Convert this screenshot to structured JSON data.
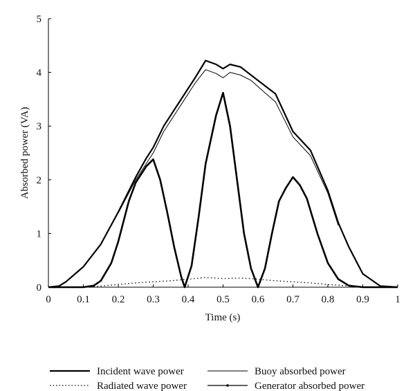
{
  "chart_data": {
    "type": "line",
    "title": "",
    "xlabel": "Time (s)",
    "ylabel": "Absorbed power (VA)",
    "xlim": [
      0,
      1
    ],
    "ylim": [
      0,
      5
    ],
    "xticks": [
      "0",
      "0.1",
      "0.2",
      "0.3",
      "0.4",
      "0.5",
      "0.6",
      "0.7",
      "0.8",
      "0.9",
      "1"
    ],
    "yticks": [
      "0",
      "1",
      "2",
      "3",
      "4",
      "5"
    ],
    "grid": false,
    "legend_position": "bottom",
    "series": [
      {
        "name": "Incident wave power",
        "style": "thick-solid",
        "x": [
          0,
          0.03,
          0.05,
          0.1,
          0.15,
          0.2,
          0.25,
          0.28,
          0.3,
          0.33,
          0.38,
          0.42,
          0.45,
          0.48,
          0.5,
          0.52,
          0.55,
          0.58,
          0.62,
          0.65,
          0.7,
          0.75,
          0.8,
          0.83,
          0.86,
          0.9,
          0.95,
          1.0
        ],
        "y": [
          0,
          0.02,
          0.1,
          0.38,
          0.8,
          1.4,
          2.05,
          2.4,
          2.6,
          3.0,
          3.5,
          3.9,
          4.22,
          4.15,
          4.07,
          4.15,
          4.1,
          3.95,
          3.75,
          3.6,
          2.9,
          2.55,
          1.8,
          1.2,
          0.75,
          0.25,
          0.02,
          0
        ]
      },
      {
        "name": "Buoy absorbed power",
        "style": "thin-solid",
        "x": [
          0.2,
          0.25,
          0.28,
          0.3,
          0.33,
          0.38,
          0.42,
          0.45,
          0.48,
          0.5,
          0.52,
          0.55,
          0.58,
          0.62,
          0.65,
          0.7,
          0.75,
          0.8,
          0.83
        ],
        "y": [
          1.38,
          2.0,
          2.3,
          2.5,
          2.9,
          3.4,
          3.8,
          4.05,
          3.98,
          3.9,
          4.0,
          3.95,
          3.85,
          3.62,
          3.45,
          2.8,
          2.45,
          1.75,
          1.15
        ]
      },
      {
        "name": "Radiated wave power",
        "style": "dotted",
        "x": [
          0.1,
          0.15,
          0.2,
          0.25,
          0.3,
          0.35,
          0.4,
          0.45,
          0.5,
          0.55,
          0.6,
          0.65,
          0.7,
          0.75,
          0.8,
          0.85,
          0.88
        ],
        "y": [
          0,
          0.02,
          0.05,
          0.08,
          0.1,
          0.12,
          0.15,
          0.18,
          0.16,
          0.17,
          0.15,
          0.12,
          0.1,
          0.08,
          0.05,
          0.03,
          0.02
        ]
      },
      {
        "name": "Generator absorbed power",
        "style": "thick-dotted-marker",
        "x": [
          0,
          0.1,
          0.13,
          0.15,
          0.18,
          0.2,
          0.23,
          0.25,
          0.28,
          0.3,
          0.32,
          0.34,
          0.36,
          0.38,
          0.39,
          0.41,
          0.43,
          0.45,
          0.48,
          0.5,
          0.52,
          0.54,
          0.56,
          0.58,
          0.6,
          0.62,
          0.64,
          0.66,
          0.68,
          0.7,
          0.72,
          0.74,
          0.77,
          0.8,
          0.83,
          0.86,
          0.9,
          1.0
        ],
        "y": [
          0,
          0,
          0.03,
          0.12,
          0.45,
          0.85,
          1.6,
          1.95,
          2.25,
          2.38,
          2.0,
          1.4,
          0.75,
          0.2,
          0,
          0.4,
          1.3,
          2.3,
          3.2,
          3.62,
          3.0,
          2.0,
          1.0,
          0.35,
          0,
          0.35,
          1.0,
          1.6,
          1.85,
          2.05,
          1.9,
          1.65,
          1.0,
          0.45,
          0.15,
          0.03,
          0,
          0
        ]
      }
    ]
  }
}
